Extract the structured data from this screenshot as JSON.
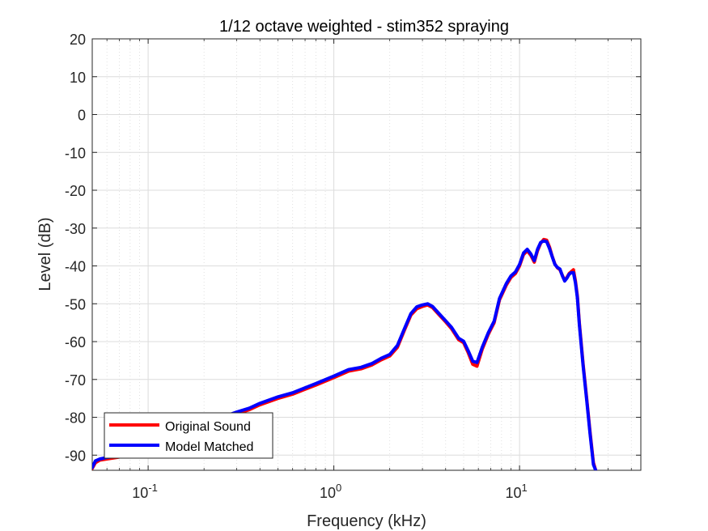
{
  "chart_data": {
    "type": "line",
    "title": "1/12 octave weighted - stim352 spraying",
    "xlabel": "Frequency (kHz)",
    "ylabel": "Level (dB)",
    "xscale": "log",
    "xlim": [
      0.05,
      45
    ],
    "ylim": [
      -94,
      20
    ],
    "grid": true,
    "minor_grid": true,
    "legend_position": "bottom-left",
    "x_ticks": [
      {
        "value": 0.1,
        "base": "10",
        "exp": "-1"
      },
      {
        "value": 1,
        "base": "10",
        "exp": "0"
      },
      {
        "value": 10,
        "base": "10",
        "exp": "1"
      }
    ],
    "y_ticks": [
      20,
      10,
      0,
      -10,
      -20,
      -30,
      -40,
      -50,
      -60,
      -70,
      -80,
      -90
    ],
    "y_tick_labels": [
      "20",
      "10",
      "0",
      "-10",
      "-20",
      "-30",
      "-40",
      "-50",
      "-60",
      "-70",
      "-80",
      "-90"
    ],
    "series": [
      {
        "name": "Original Sound",
        "color": "#ff0000",
        "x": [
          0.05,
          0.052,
          0.055,
          0.06,
          0.07,
          0.1,
          0.15,
          0.2,
          0.25,
          0.3,
          0.35,
          0.4,
          0.5,
          0.6,
          0.7,
          0.8,
          1.0,
          1.2,
          1.4,
          1.6,
          1.8,
          2.0,
          2.2,
          2.4,
          2.6,
          2.8,
          3.0,
          3.2,
          3.4,
          3.7,
          4.0,
          4.3,
          4.7,
          5.0,
          5.3,
          5.6,
          5.9,
          6.3,
          6.8,
          7.3,
          7.8,
          8.5,
          9.0,
          9.5,
          10.0,
          10.5,
          11.0,
          11.5,
          12.0,
          12.5,
          13.0,
          13.5,
          14.0,
          14.5,
          15.0,
          15.5,
          16.0,
          16.5,
          17.0,
          17.5,
          18.0,
          18.5,
          19.0,
          19.5,
          20.0,
          20.5,
          21.0,
          22.0,
          23.0,
          24.0,
          25.0,
          25.7
        ],
        "y": [
          -93.5,
          -92,
          -91.3,
          -91,
          -90.5,
          -88,
          -85,
          -82,
          -80.5,
          -79,
          -78,
          -76.7,
          -75,
          -73.9,
          -72.6,
          -71.5,
          -69.5,
          -67.8,
          -67.2,
          -66.2,
          -64.8,
          -63.8,
          -61.5,
          -57,
          -53,
          -51.3,
          -50.7,
          -50.3,
          -51,
          -53,
          -54.8,
          -56.6,
          -59.5,
          -60.3,
          -63,
          -66,
          -66.5,
          -62,
          -58,
          -55,
          -49,
          -45,
          -43,
          -42,
          -40,
          -37,
          -36,
          -37.2,
          -39,
          -36,
          -34,
          -33,
          -33.2,
          -35,
          -37.5,
          -39.5,
          -40.5,
          -41,
          -42.5,
          -43.8,
          -43,
          -42,
          -41.5,
          -41,
          -44,
          -48,
          -55,
          -66,
          -75,
          -84,
          -92,
          -94
        ]
      },
      {
        "name": "Model Matched",
        "color": "#0000ff",
        "x": [
          0.05,
          0.052,
          0.055,
          0.06,
          0.07,
          0.1,
          0.15,
          0.2,
          0.25,
          0.3,
          0.35,
          0.4,
          0.5,
          0.6,
          0.7,
          0.8,
          1.0,
          1.2,
          1.4,
          1.6,
          1.8,
          2.0,
          2.2,
          2.4,
          2.6,
          2.8,
          3.0,
          3.2,
          3.4,
          3.7,
          4.0,
          4.3,
          4.7,
          5.0,
          5.3,
          5.6,
          5.9,
          6.3,
          6.8,
          7.3,
          7.8,
          8.5,
          9.0,
          9.5,
          10.0,
          10.5,
          11.0,
          11.5,
          12.0,
          12.5,
          13.0,
          13.5,
          14.0,
          14.5,
          15.0,
          15.5,
          16.0,
          16.5,
          17.0,
          17.5,
          18.0,
          18.5,
          19.0,
          19.5,
          20.0,
          20.5,
          21.0,
          22.0,
          23.0,
          24.0,
          25.0,
          25.7
        ],
        "y": [
          -93.3,
          -91.5,
          -91,
          -90.6,
          -90.2,
          -87.6,
          -84.6,
          -81.6,
          -80,
          -78.6,
          -77.6,
          -76.3,
          -74.6,
          -73.5,
          -72.2,
          -71.1,
          -69.1,
          -67.4,
          -66.8,
          -65.8,
          -64.4,
          -63.4,
          -61,
          -56.6,
          -52.6,
          -50.8,
          -50.3,
          -50,
          -50.7,
          -52.7,
          -54.5,
          -56.2,
          -59.1,
          -59.9,
          -62.5,
          -65.2,
          -65.5,
          -61.5,
          -57.6,
          -54.6,
          -48.6,
          -44.6,
          -42.6,
          -41.6,
          -39.6,
          -36.6,
          -35.6,
          -36.8,
          -38.6,
          -35.6,
          -33.8,
          -33.4,
          -33.6,
          -35.4,
          -37.6,
          -39.6,
          -40.4,
          -40.8,
          -42.6,
          -44,
          -43.2,
          -42.2,
          -41.8,
          -41.8,
          -44.5,
          -48.5,
          -55.5,
          -66.5,
          -75.5,
          -84.5,
          -92.5,
          -94
        ]
      }
    ]
  }
}
